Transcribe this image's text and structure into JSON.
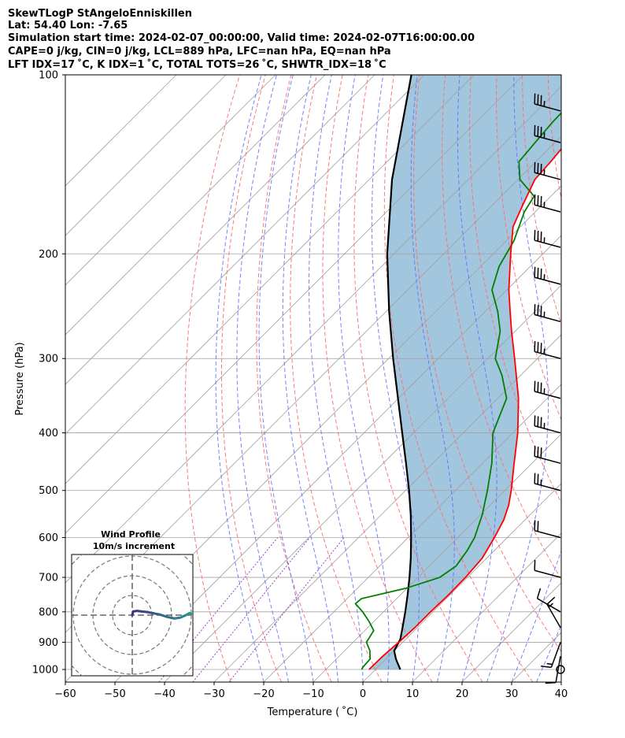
{
  "header": {
    "line1": "SkewTLogP StAngeloEnniskillen",
    "line2": "Lat: 54.40   Lon: -7.65",
    "line3": "Simulation start time: 2024-02-07_00:00:00, Valid time: 2024-02-07T16:00:00.00",
    "line4": "CAPE=0 j/kg, CIN=0 j/kg, LCL=889 hPa, LFC=nan hPa, EQ=nan hPa",
    "line5": "LFT IDX=17 ˚C, K IDX=1 ˚C, TOTAL TOTS=26 ˚C, SHWTR_IDX=18 ˚C"
  },
  "colors": {
    "temperature": "#ff0000",
    "dewpoint": "#008000",
    "parcel": "#000000",
    "fill": "#a3c6df",
    "dry_adiabat": "#ff6a6a",
    "moist_adiabat": "#5a6cff",
    "mixing_ratio": "#9a40c8",
    "isotherm": "#a0a0a0",
    "hodo_line_start": "#3b2b7a",
    "hodo_line_end": "#2aa090"
  },
  "chart_data": {
    "type": "skewt",
    "xlabel": "Temperature ( ˚C)",
    "ylabel": "Pressure (hPa)",
    "xlim": [
      -60,
      40
    ],
    "ylim": [
      1050,
      100
    ],
    "x_ticks": [
      "−60",
      "−50",
      "−40",
      "−30",
      "−20",
      "−10",
      "0",
      "10",
      "20",
      "30",
      "40"
    ],
    "y_ticks": [
      "100",
      "200",
      "300",
      "400",
      "500",
      "600",
      "700",
      "800",
      "900",
      "1000"
    ],
    "temperature_profile": [
      {
        "p": 1000,
        "t": -1.3
      },
      {
        "p": 950,
        "t": -1.2
      },
      {
        "p": 900,
        "t": -0.8
      },
      {
        "p": 850,
        "t": -0.5
      },
      {
        "p": 800,
        "t": -0.5
      },
      {
        "p": 750,
        "t": -0.3
      },
      {
        "p": 700,
        "t": -0.4
      },
      {
        "p": 650,
        "t": -0.9
      },
      {
        "p": 600,
        "t": -2.6
      },
      {
        "p": 560,
        "t": -4.3
      },
      {
        "p": 530,
        "t": -6.2
      },
      {
        "p": 500,
        "t": -8.7
      },
      {
        "p": 450,
        "t": -13.6
      },
      {
        "p": 400,
        "t": -19.0
      },
      {
        "p": 350,
        "t": -25.8
      },
      {
        "p": 300,
        "t": -34.6
      },
      {
        "p": 270,
        "t": -40.7
      },
      {
        "p": 250,
        "t": -45.0
      },
      {
        "p": 230,
        "t": -49.6
      },
      {
        "p": 200,
        "t": -56.5
      },
      {
        "p": 180,
        "t": -61.5
      },
      {
        "p": 165,
        "t": -64.0
      },
      {
        "p": 150,
        "t": -66.6
      },
      {
        "p": 140,
        "t": -67.0
      },
      {
        "p": 125,
        "t": -68.0
      },
      {
        "p": 113,
        "t": -68.9
      },
      {
        "p": 100,
        "t": -69.9
      }
    ],
    "dewpoint_profile": [
      {
        "p": 1000,
        "t": -2.8
      },
      {
        "p": 990,
        "t": -3.0
      },
      {
        "p": 960,
        "t": -3.2
      },
      {
        "p": 930,
        "t": -4.9
      },
      {
        "p": 900,
        "t": -7.3
      },
      {
        "p": 860,
        "t": -8.2
      },
      {
        "p": 830,
        "t": -11.0
      },
      {
        "p": 800,
        "t": -14.2
      },
      {
        "p": 775,
        "t": -17.3
      },
      {
        "p": 760,
        "t": -17.1
      },
      {
        "p": 730,
        "t": -10.2
      },
      {
        "p": 700,
        "t": -5.6
      },
      {
        "p": 670,
        "t": -4.6
      },
      {
        "p": 630,
        "t": -5.5
      },
      {
        "p": 600,
        "t": -6.6
      },
      {
        "p": 550,
        "t": -9.6
      },
      {
        "p": 500,
        "t": -13.5
      },
      {
        "p": 450,
        "t": -18.1
      },
      {
        "p": 400,
        "t": -24.0
      },
      {
        "p": 350,
        "t": -28.2
      },
      {
        "p": 320,
        "t": -33.8
      },
      {
        "p": 300,
        "t": -38.5
      },
      {
        "p": 270,
        "t": -43.0
      },
      {
        "p": 250,
        "t": -47.5
      },
      {
        "p": 230,
        "t": -53.0
      },
      {
        "p": 210,
        "t": -56.3
      },
      {
        "p": 190,
        "t": -58.5
      },
      {
        "p": 170,
        "t": -62.2
      },
      {
        "p": 160,
        "t": -63.4
      },
      {
        "p": 150,
        "t": -69.6
      },
      {
        "p": 140,
        "t": -73.4
      },
      {
        "p": 130,
        "t": -74.0
      },
      {
        "p": 120,
        "t": -74.6
      },
      {
        "p": 110,
        "t": -74.8
      },
      {
        "p": 100,
        "t": -74.6
      }
    ],
    "parcel_profile": [
      {
        "p": 1000,
        "t": 5.0
      },
      {
        "p": 960,
        "t": 2.0
      },
      {
        "p": 930,
        "t": 0.0
      },
      {
        "p": 900,
        "t": -0.8
      },
      {
        "p": 889,
        "t": -1.1
      },
      {
        "p": 850,
        "t": -3.0
      },
      {
        "p": 800,
        "t": -5.6
      },
      {
        "p": 750,
        "t": -8.5
      },
      {
        "p": 700,
        "t": -11.7
      },
      {
        "p": 650,
        "t": -15.3
      },
      {
        "p": 600,
        "t": -19.4
      },
      {
        "p": 550,
        "t": -24.0
      },
      {
        "p": 500,
        "t": -29.3
      },
      {
        "p": 450,
        "t": -35.4
      },
      {
        "p": 400,
        "t": -42.3
      },
      {
        "p": 350,
        "t": -50.1
      },
      {
        "p": 300,
        "t": -59.1
      },
      {
        "p": 250,
        "t": -69.4
      },
      {
        "p": 200,
        "t": -81.4
      },
      {
        "p": 150,
        "t": -95.4
      },
      {
        "p": 100,
        "t": -112.6
      }
    ],
    "wind_barbs": [
      {
        "p": 1000,
        "speed_kt": 0,
        "dir_deg": 0
      },
      {
        "p": 950,
        "speed_kt": 10,
        "dir_deg": 190
      },
      {
        "p": 900,
        "speed_kt": 15,
        "dir_deg": 200
      },
      {
        "p": 850,
        "speed_kt": 15,
        "dir_deg": 330
      },
      {
        "p": 800,
        "speed_kt": 10,
        "dir_deg": 300
      },
      {
        "p": 700,
        "speed_kt": 10,
        "dir_deg": 285
      },
      {
        "p": 600,
        "speed_kt": 20,
        "dir_deg": 285
      },
      {
        "p": 500,
        "speed_kt": 25,
        "dir_deg": 285
      },
      {
        "p": 450,
        "speed_kt": 30,
        "dir_deg": 285
      },
      {
        "p": 400,
        "speed_kt": 35,
        "dir_deg": 285
      },
      {
        "p": 350,
        "speed_kt": 35,
        "dir_deg": 285
      },
      {
        "p": 300,
        "speed_kt": 35,
        "dir_deg": 285
      },
      {
        "p": 260,
        "speed_kt": 35,
        "dir_deg": 285
      },
      {
        "p": 225,
        "speed_kt": 35,
        "dir_deg": 285
      },
      {
        "p": 195,
        "speed_kt": 35,
        "dir_deg": 285
      },
      {
        "p": 170,
        "speed_kt": 35,
        "dir_deg": 285
      },
      {
        "p": 150,
        "speed_kt": 35,
        "dir_deg": 285
      },
      {
        "p": 130,
        "speed_kt": 35,
        "dir_deg": 285
      },
      {
        "p": 115,
        "speed_kt": 35,
        "dir_deg": 285
      }
    ],
    "hodograph": {
      "title": "Wind Profile",
      "subtitle": "10m/s increment",
      "ring_step_ms": 10,
      "rings": 3,
      "points": [
        {
          "u": 0,
          "v": 0
        },
        {
          "u": 0.3,
          "v": 1.2
        },
        {
          "u": 1.6,
          "v": 1.4
        },
        {
          "u": 3.2,
          "v": 1.2
        },
        {
          "u": 5.0,
          "v": 1.0
        },
        {
          "u": 7.0,
          "v": 0.6
        },
        {
          "u": 9.0,
          "v": 0.2
        },
        {
          "u": 11.5,
          "v": -0.6
        },
        {
          "u": 13.8,
          "v": -1.1
        },
        {
          "u": 15.8,
          "v": -0.8
        },
        {
          "u": 17.6,
          "v": 0.0
        },
        {
          "u": 18.8,
          "v": 0.7
        },
        {
          "u": 19.6,
          "v": 0.3
        },
        {
          "u": 20.4,
          "v": -0.1
        }
      ]
    }
  }
}
